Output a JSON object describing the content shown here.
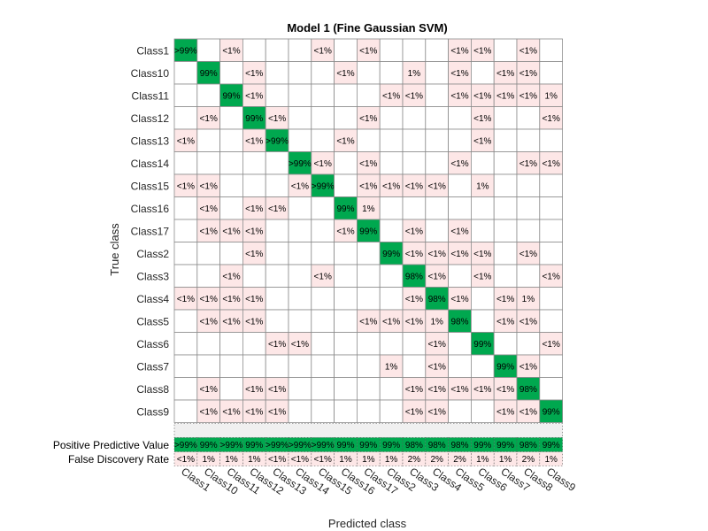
{
  "chart_data": {
    "type": "heatmap",
    "title": "Model 1 (Fine Gaussian SVM)",
    "xlabel": "Predicted class",
    "ylabel": "True class",
    "classes": [
      "Class1",
      "Class10",
      "Class11",
      "Class12",
      "Class13",
      "Class14",
      "Class15",
      "Class16",
      "Class17",
      "Class2",
      "Class3",
      "Class4",
      "Class5",
      "Class6",
      "Class7",
      "Class8",
      "Class9"
    ],
    "matrix": [
      [
        ">99%",
        "",
        "<1%",
        "",
        "",
        "",
        "<1%",
        "",
        "<1%",
        "",
        "",
        "",
        "<1%",
        "<1%",
        "",
        "<1%",
        ""
      ],
      [
        "",
        "99%",
        "",
        "<1%",
        "",
        "",
        "",
        "<1%",
        "",
        "",
        "1%",
        "",
        "<1%",
        "",
        "<1%",
        "<1%",
        ""
      ],
      [
        "",
        "",
        "99%",
        "<1%",
        "",
        "",
        "",
        "",
        "",
        "<1%",
        "<1%",
        "",
        "<1%",
        "<1%",
        "<1%",
        "<1%",
        "1%"
      ],
      [
        "",
        "<1%",
        "",
        "99%",
        "<1%",
        "",
        "",
        "",
        "<1%",
        "",
        "",
        "",
        "",
        "<1%",
        "",
        "",
        "<1%"
      ],
      [
        "<1%",
        "",
        "",
        "<1%",
        ">99%",
        "",
        "",
        "<1%",
        "",
        "",
        "",
        "",
        "",
        "<1%",
        "",
        "",
        ""
      ],
      [
        "",
        "",
        "",
        "",
        "",
        ">99%",
        "<1%",
        "",
        "<1%",
        "",
        "",
        "",
        "<1%",
        "",
        "",
        "<1%",
        "<1%"
      ],
      [
        "<1%",
        "<1%",
        "",
        "",
        "",
        "<1%",
        ">99%",
        "",
        "<1%",
        "<1%",
        "<1%",
        "<1%",
        "",
        "1%",
        "",
        "",
        ""
      ],
      [
        "",
        "<1%",
        "",
        "<1%",
        "<1%",
        "",
        "",
        "99%",
        "1%",
        "",
        "",
        "",
        "",
        "",
        "",
        "",
        ""
      ],
      [
        "",
        "<1%",
        "<1%",
        "<1%",
        "",
        "",
        "",
        "<1%",
        "99%",
        "",
        "<1%",
        "",
        "<1%",
        "",
        "",
        "",
        ""
      ],
      [
        "",
        "",
        "",
        "<1%",
        "",
        "",
        "",
        "",
        "",
        "99%",
        "<1%",
        "<1%",
        "<1%",
        "<1%",
        "",
        "<1%",
        ""
      ],
      [
        "",
        "",
        "<1%",
        "",
        "",
        "",
        "<1%",
        "",
        "",
        "",
        "98%",
        "<1%",
        "",
        "<1%",
        "",
        "",
        "<1%"
      ],
      [
        "<1%",
        "<1%",
        "<1%",
        "<1%",
        "",
        "",
        "",
        "",
        "",
        "",
        "<1%",
        "98%",
        "<1%",
        "",
        "<1%",
        "1%",
        ""
      ],
      [
        "",
        "<1%",
        "<1%",
        "<1%",
        "",
        "",
        "",
        "",
        "<1%",
        "<1%",
        "<1%",
        "1%",
        "98%",
        "",
        "<1%",
        "<1%",
        ""
      ],
      [
        "",
        "",
        "",
        "",
        "<1%",
        "<1%",
        "",
        "",
        "",
        "",
        "",
        "<1%",
        "",
        "99%",
        "",
        "",
        "<1%"
      ],
      [
        "",
        "",
        "",
        "",
        "",
        "",
        "",
        "",
        "",
        "1%",
        "",
        "<1%",
        "",
        "",
        "99%",
        "<1%",
        ""
      ],
      [
        "",
        "<1%",
        "",
        "<1%",
        "<1%",
        "",
        "",
        "",
        "",
        "",
        "<1%",
        "<1%",
        "<1%",
        "<1%",
        "<1%",
        "98%",
        ""
      ],
      [
        "",
        "<1%",
        "<1%",
        "<1%",
        "<1%",
        "",
        "",
        "",
        "",
        "",
        "<1%",
        "<1%",
        "",
        "",
        "<1%",
        "<1%",
        "99%"
      ]
    ],
    "summary_rows": [
      {
        "label": "Positive Predictive Value",
        "values": [
          ">99%",
          "99%",
          ">99%",
          "99%",
          ">99%",
          ">99%",
          ">99%",
          "99%",
          "99%",
          "99%",
          "98%",
          "98%",
          "98%",
          "99%",
          "99%",
          "98%",
          "99%"
        ]
      },
      {
        "label": "False Discovery Rate",
        "values": [
          "<1%",
          "1%",
          "1%",
          "1%",
          "<1%",
          "<1%",
          "<1%",
          "1%",
          "1%",
          "1%",
          "2%",
          "2%",
          "2%",
          "1%",
          "1%",
          "2%",
          "1%"
        ]
      }
    ],
    "colors": {
      "diagonal": "#00a84f",
      "off_diagonal": "#fde7e7",
      "empty": "#ffffff",
      "grid": "#8c8c8c",
      "summary_gap": "#f0f0f0"
    }
  }
}
